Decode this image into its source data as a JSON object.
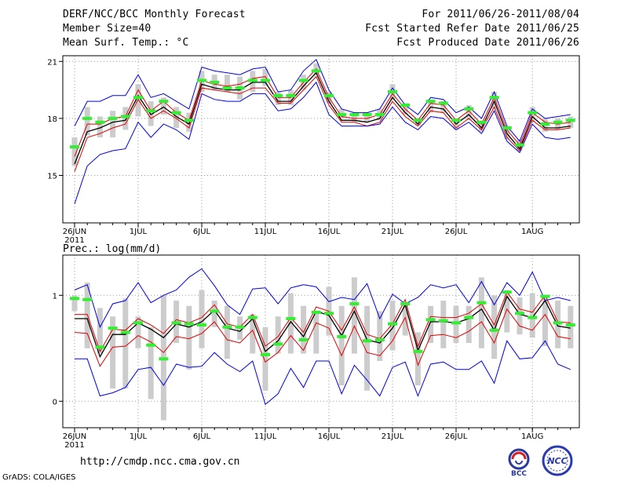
{
  "header": {
    "title": "DERF/NCC/BCC Monthly Forecast",
    "member_size": "Member Size=40",
    "variable": "Mean Surf. Temp.: °C",
    "forecast_period": "For 2011/06/26-2011/08/04",
    "fcst_started": "Fcst Started Refer Date 2011/06/25",
    "fcst_produced": "Fcst Produced Date 2011/06/26"
  },
  "precip_label": "Prec.: log(mm/d)",
  "footer": {
    "url": "http://cmdp.ncc.cma.gov.cn",
    "grads": "GrADS: COLA/IGES"
  },
  "logos": {
    "bcc": "BCC",
    "ncc": "NCC"
  },
  "colors": {
    "mean": "#000000",
    "spread": "#e00000",
    "extreme": "#0000e0",
    "obs": "#33ee33",
    "box": "#cccccc"
  },
  "chart_data": [
    {
      "type": "line",
      "title": "Mean Surf. Temp.",
      "unit": "°C",
      "xlabel": "",
      "ylabel": "",
      "ylim": [
        12.5,
        21.3
      ],
      "yticks": [
        15,
        18,
        21
      ],
      "x_start": "2011-06-26",
      "n_days": 40,
      "xtick_labels": [
        "26JUN",
        "1JUL",
        "6JUL",
        "11JUL",
        "16JUL",
        "21JUL",
        "26JUL",
        "1AUG"
      ],
      "xtick_index": [
        0,
        5,
        10,
        15,
        20,
        25,
        30,
        36
      ],
      "year_label": "2011",
      "series": [
        {
          "name": "max",
          "values": [
            17.6,
            18.9,
            18.9,
            19.2,
            19.2,
            20.3,
            19.1,
            19.3,
            18.9,
            18.5,
            20.7,
            20.5,
            20.4,
            20.3,
            20.6,
            20.7,
            19.4,
            19.5,
            20.5,
            21.1,
            19.5,
            18.5,
            18.3,
            18.3,
            18.5,
            19.6,
            18.7,
            18.2,
            19.1,
            19.0,
            18.3,
            18.6,
            18.0,
            19.4,
            17.6,
            16.8,
            18.5,
            18.0,
            18.1,
            18.2
          ]
        },
        {
          "name": "p80",
          "values": [
            16.0,
            17.7,
            17.7,
            18.0,
            18.1,
            19.5,
            18.4,
            18.9,
            18.3,
            17.9,
            20.0,
            19.8,
            19.7,
            19.8,
            20.1,
            20.2,
            19.1,
            19.1,
            19.9,
            20.6,
            19.1,
            18.1,
            18.0,
            18.0,
            18.2,
            19.3,
            18.5,
            17.9,
            18.8,
            18.7,
            17.9,
            18.4,
            17.7,
            19.1,
            17.4,
            16.6,
            18.3,
            17.8,
            17.7,
            17.8
          ]
        },
        {
          "name": "mean",
          "values": [
            15.6,
            17.3,
            17.5,
            17.8,
            17.9,
            19.2,
            18.2,
            18.6,
            18.1,
            17.7,
            19.8,
            19.6,
            19.5,
            19.5,
            19.9,
            19.9,
            18.9,
            18.9,
            19.7,
            20.4,
            18.9,
            17.9,
            17.9,
            17.8,
            18.0,
            19.1,
            18.3,
            17.7,
            18.6,
            18.5,
            17.7,
            18.2,
            17.5,
            18.9,
            17.2,
            16.4,
            18.1,
            17.5,
            17.5,
            17.6
          ]
        },
        {
          "name": "p20",
          "values": [
            15.2,
            17.0,
            17.2,
            17.5,
            17.7,
            19.0,
            18.0,
            18.4,
            18.0,
            17.5,
            19.6,
            19.5,
            19.4,
            19.3,
            19.6,
            19.6,
            18.8,
            18.8,
            19.5,
            20.2,
            18.7,
            17.8,
            17.8,
            17.6,
            17.8,
            18.9,
            18.1,
            17.6,
            18.4,
            18.3,
            17.5,
            18.0,
            17.4,
            18.6,
            17.0,
            16.3,
            17.9,
            17.4,
            17.4,
            17.5
          ]
        },
        {
          "name": "min",
          "values": [
            13.5,
            15.5,
            16.1,
            16.3,
            16.4,
            17.8,
            17.0,
            17.7,
            17.4,
            16.9,
            19.3,
            19.0,
            18.9,
            18.9,
            19.3,
            19.3,
            18.4,
            18.5,
            19.1,
            19.9,
            18.2,
            17.6,
            17.6,
            17.6,
            17.7,
            18.6,
            17.8,
            17.4,
            18.1,
            18.0,
            17.4,
            17.8,
            17.2,
            18.4,
            16.8,
            16.2,
            17.7,
            17.0,
            16.9,
            17.0
          ]
        },
        {
          "name": "observed",
          "values": [
            16.5,
            18.0,
            17.8,
            18.0,
            18.1,
            19.1,
            18.4,
            18.9,
            18.3,
            17.9,
            20.0,
            19.9,
            19.6,
            19.6,
            20.0,
            20.0,
            19.2,
            19.2,
            20.0,
            20.5,
            19.2,
            18.2,
            18.2,
            18.2,
            18.2,
            19.4,
            18.7,
            17.9,
            18.9,
            18.8,
            17.9,
            18.5,
            17.8,
            19.1,
            17.5,
            16.6,
            18.3,
            17.7,
            17.8,
            17.9
          ]
        },
        {
          "name": "box_top",
          "values": [
            17.0,
            18.6,
            18.1,
            18.4,
            18.6,
            19.8,
            18.9,
            19.1,
            18.6,
            18.3,
            20.5,
            20.3,
            20.3,
            20.2,
            20.5,
            20.6,
            19.4,
            19.5,
            20.3,
            20.9,
            19.4,
            18.5,
            18.3,
            18.3,
            18.5,
            19.8,
            18.8,
            18.0,
            19.0,
            18.9,
            18.0,
            18.7,
            17.8,
            19.4,
            17.6,
            16.9,
            18.6,
            18.0,
            18.0,
            18.1
          ]
        },
        {
          "name": "box_bottom",
          "values": [
            15.5,
            17.1,
            17.0,
            17.0,
            17.4,
            18.1,
            17.6,
            18.2,
            17.5,
            17.3,
            19.4,
            19.5,
            19.4,
            19.0,
            19.4,
            19.7,
            18.7,
            18.7,
            19.5,
            20.3,
            18.8,
            18.0,
            17.8,
            17.8,
            17.9,
            19.0,
            18.2,
            17.6,
            18.3,
            18.3,
            17.4,
            17.9,
            17.3,
            18.5,
            16.9,
            16.3,
            17.8,
            17.3,
            17.4,
            17.5
          ]
        }
      ]
    },
    {
      "type": "line",
      "title": "Prec.: log(mm/d)",
      "unit": "log(mm/d)",
      "xlabel": "",
      "ylabel": "",
      "ylim": [
        -0.25,
        1.38
      ],
      "yticks": [
        0,
        1
      ],
      "x_start": "2011-06-26",
      "n_days": 40,
      "xtick_labels": [
        "26JUN",
        "1JUL",
        "6JUL",
        "11JUL",
        "16JUL",
        "21JUL",
        "26JUL",
        "1AUG"
      ],
      "xtick_index": [
        0,
        5,
        10,
        15,
        20,
        25,
        30,
        36
      ],
      "year_label": "2011",
      "series": [
        {
          "name": "max",
          "values": [
            1.05,
            1.1,
            0.7,
            0.92,
            0.95,
            1.12,
            0.93,
            1.0,
            1.05,
            1.17,
            1.25,
            1.09,
            0.91,
            0.82,
            1.06,
            1.07,
            0.92,
            1.07,
            1.1,
            1.08,
            0.94,
            0.98,
            0.96,
            1.11,
            0.78,
            1.01,
            0.92,
            0.98,
            1.1,
            1.07,
            1.1,
            0.93,
            1.13,
            0.91,
            1.12,
            1.0,
            1.22,
            0.95,
            0.98,
            0.95
          ]
        },
        {
          "name": "p80",
          "values": [
            0.82,
            0.82,
            0.47,
            0.68,
            0.67,
            0.78,
            0.72,
            0.64,
            0.77,
            0.74,
            0.79,
            0.91,
            0.73,
            0.7,
            0.82,
            0.52,
            0.61,
            0.79,
            0.65,
            0.89,
            0.85,
            0.67,
            0.89,
            0.63,
            0.59,
            0.73,
            0.96,
            0.52,
            0.8,
            0.79,
            0.79,
            0.83,
            0.92,
            0.72,
            1.03,
            0.87,
            0.84,
            1.0,
            0.75,
            0.74
          ]
        },
        {
          "name": "mean",
          "values": [
            0.78,
            0.78,
            0.42,
            0.63,
            0.63,
            0.74,
            0.68,
            0.6,
            0.73,
            0.7,
            0.75,
            0.86,
            0.69,
            0.66,
            0.78,
            0.47,
            0.57,
            0.75,
            0.61,
            0.85,
            0.81,
            0.62,
            0.85,
            0.58,
            0.55,
            0.69,
            0.91,
            0.48,
            0.75,
            0.75,
            0.74,
            0.78,
            0.87,
            0.67,
            0.99,
            0.82,
            0.79,
            0.95,
            0.71,
            0.69
          ]
        },
        {
          "name": "p20",
          "values": [
            0.65,
            0.64,
            0.33,
            0.51,
            0.52,
            0.62,
            0.56,
            0.46,
            0.61,
            0.59,
            0.64,
            0.75,
            0.58,
            0.55,
            0.67,
            0.37,
            0.46,
            0.62,
            0.48,
            0.74,
            0.69,
            0.43,
            0.71,
            0.46,
            0.43,
            0.57,
            0.79,
            0.34,
            0.62,
            0.63,
            0.6,
            0.66,
            0.75,
            0.55,
            0.87,
            0.71,
            0.67,
            0.82,
            0.61,
            0.59
          ]
        },
        {
          "name": "min",
          "values": [
            0.4,
            0.4,
            0.05,
            0.08,
            0.13,
            0.3,
            0.32,
            0.15,
            0.35,
            0.32,
            0.33,
            0.46,
            0.35,
            0.28,
            0.38,
            -0.03,
            0.07,
            0.31,
            0.13,
            0.38,
            0.38,
            0.07,
            0.34,
            0.2,
            0.05,
            0.32,
            0.37,
            0.05,
            0.35,
            0.37,
            0.3,
            0.3,
            0.38,
            0.17,
            0.57,
            0.4,
            0.41,
            0.57,
            0.35,
            0.3
          ]
        },
        {
          "name": "observed",
          "values": [
            0.97,
            0.96,
            0.51,
            0.69,
            0.65,
            0.74,
            0.53,
            0.4,
            0.74,
            0.73,
            0.72,
            0.85,
            0.7,
            0.7,
            0.79,
            0.44,
            0.54,
            0.78,
            0.58,
            0.84,
            0.83,
            0.61,
            0.92,
            0.57,
            0.58,
            0.73,
            0.92,
            0.47,
            0.77,
            0.76,
            0.74,
            0.79,
            0.93,
            0.67,
            1.03,
            0.83,
            0.79,
            0.99,
            0.74,
            0.72
          ]
        },
        {
          "name": "box_top",
          "values": [
            1.0,
            1.12,
            0.88,
            0.8,
            0.97,
            0.8,
            0.7,
            1.0,
            0.95,
            0.9,
            1.05,
            0.95,
            0.9,
            0.8,
            0.82,
            0.7,
            0.8,
            1.02,
            0.9,
            0.85,
            1.08,
            0.9,
            1.17,
            0.9,
            0.85,
            0.95,
            0.92,
            0.65,
            0.9,
            0.95,
            0.9,
            0.9,
            1.17,
            1.0,
            1.05,
            0.98,
            1.02,
            1.0,
            0.95,
            0.9
          ]
        },
        {
          "name": "box_bottom",
          "values": [
            0.85,
            0.5,
            0.45,
            0.12,
            0.12,
            0.5,
            0.02,
            -0.18,
            0.55,
            0.3,
            0.5,
            0.7,
            0.4,
            0.58,
            0.45,
            0.1,
            0.45,
            0.45,
            0.45,
            0.45,
            0.62,
            0.15,
            0.45,
            0.1,
            0.38,
            0.48,
            0.62,
            0.15,
            0.55,
            0.5,
            0.55,
            0.55,
            0.5,
            0.4,
            0.65,
            0.63,
            0.6,
            0.52,
            0.5,
            0.5
          ]
        }
      ]
    }
  ]
}
